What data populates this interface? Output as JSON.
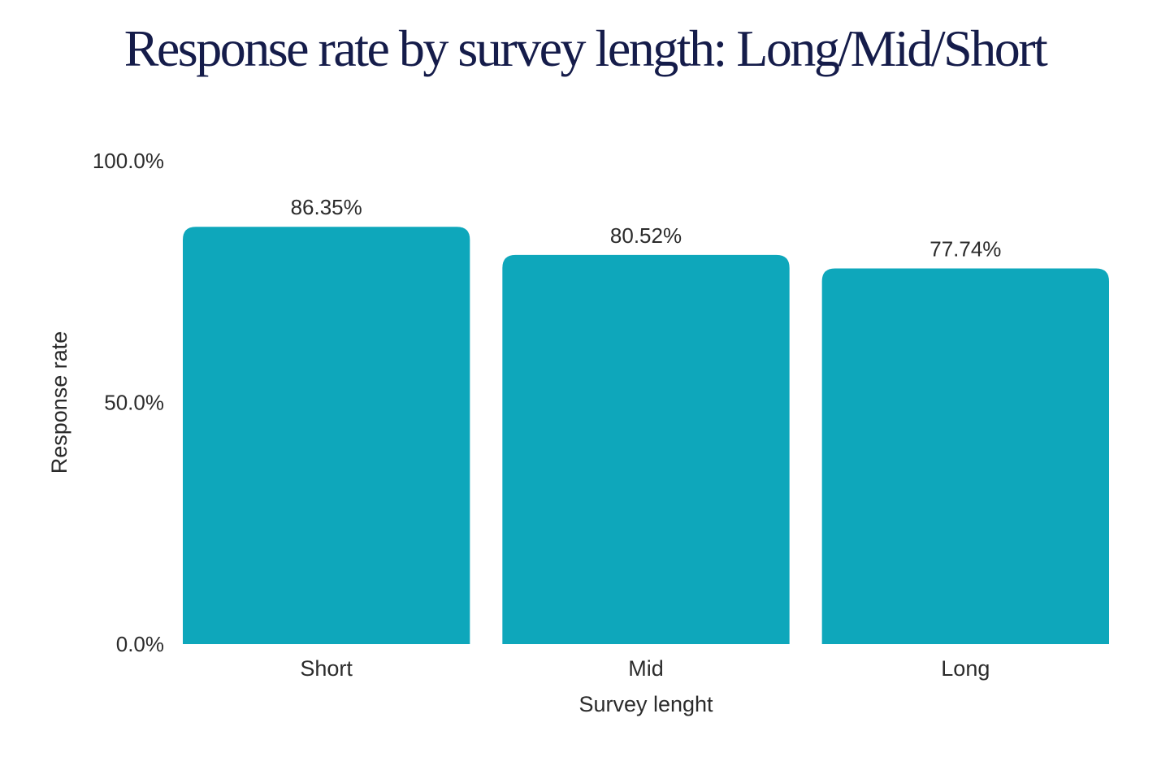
{
  "chart_data": {
    "type": "bar",
    "title": "Response rate by survey length: Long/Mid/Short",
    "xlabel": "Survey lenght",
    "ylabel": "Response rate",
    "categories": [
      "Short",
      "Mid",
      "Long"
    ],
    "values": [
      86.35,
      80.52,
      77.74
    ],
    "value_labels": [
      "86.35%",
      "80.52%",
      "77.74%"
    ],
    "ylim": [
      0,
      100
    ],
    "yticks": [
      0,
      50,
      100
    ],
    "ytick_labels": [
      "0.0%",
      "50.0%",
      "100.0%"
    ],
    "bar_color": "#0ea7bb",
    "grid": false,
    "legend": "none"
  }
}
